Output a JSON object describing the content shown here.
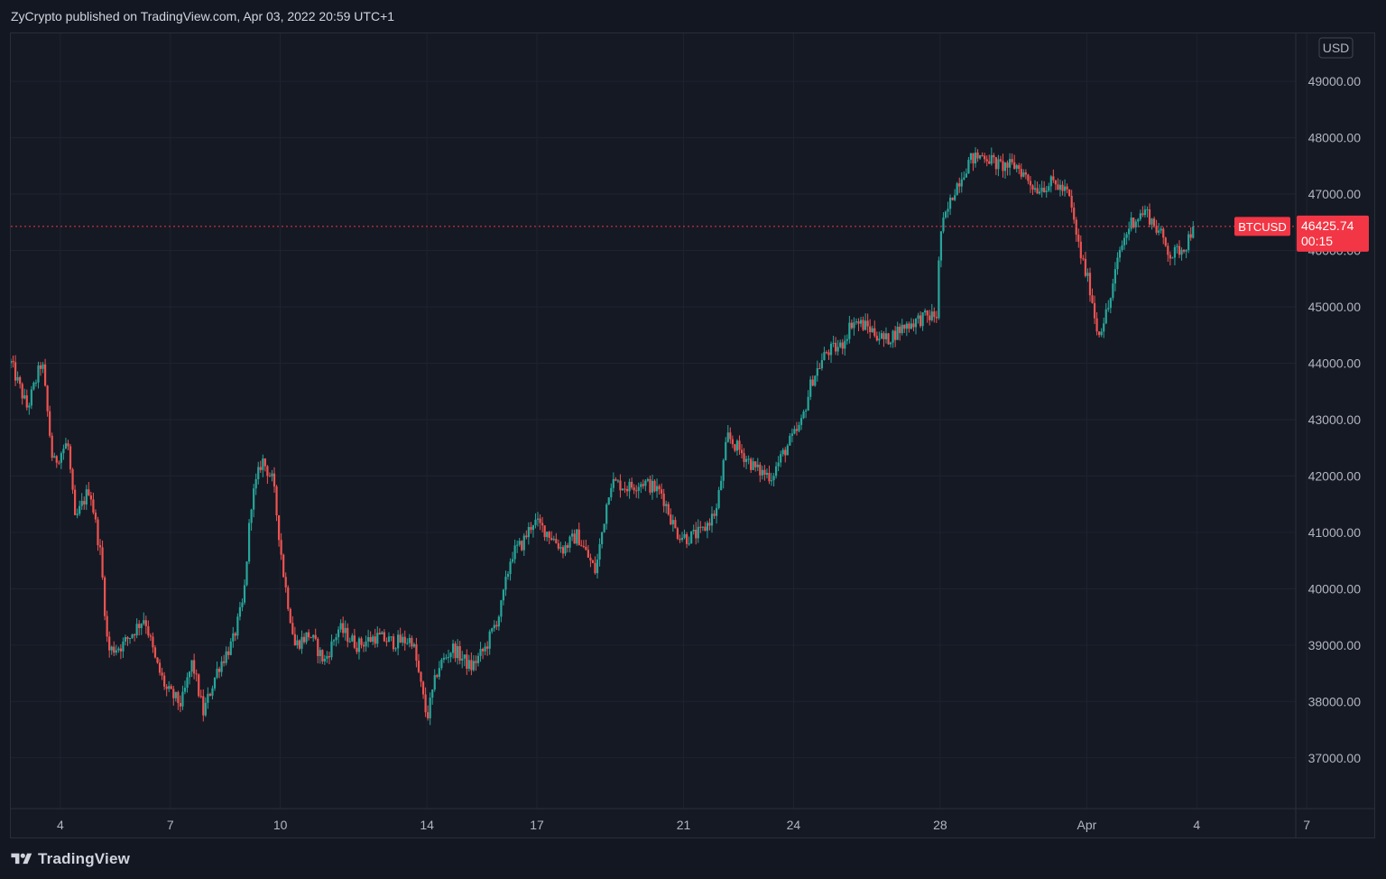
{
  "header": {
    "published_by": "ZyCrypto published on TradingView.com, Apr 03, 2022 20:59 UTC+1"
  },
  "footer": {
    "brand": "TradingView",
    "brand_icon": "tradingview-logo-icon"
  },
  "colors": {
    "background": "#131722",
    "grid": "#1f2330",
    "up": "#26a69a",
    "down": "#ef5350",
    "last_price": "#f23645"
  },
  "chart_data": {
    "type": "candlestick",
    "symbol": "BTCUSD",
    "currency": "USD",
    "last_price": "46425.74",
    "countdown": "00:15",
    "y_ticks": [
      "49000.00",
      "48000.00",
      "47000.00",
      "46000.00",
      "45000.00",
      "44000.00",
      "43000.00",
      "42000.00",
      "41000.00",
      "40000.00",
      "39000.00",
      "38000.00",
      "37000.00"
    ],
    "ylim": [
      36100,
      49850
    ],
    "x_ticks": [
      {
        "label": "4",
        "day": 4
      },
      {
        "label": "7",
        "day": 7
      },
      {
        "label": "10",
        "day": 10
      },
      {
        "label": "14",
        "day": 14
      },
      {
        "label": "17",
        "day": 17
      },
      {
        "label": "21",
        "day": 21
      },
      {
        "label": "24",
        "day": 24
      },
      {
        "label": "28",
        "day": 28
      },
      {
        "label": "Apr",
        "day": 32
      },
      {
        "label": "4",
        "day": 35
      },
      {
        "label": "7",
        "day": 38
      }
    ],
    "xlim": [
      2.65,
      37.7
    ],
    "price_path": [
      [
        2.65,
        44000
      ],
      [
        3.1,
        43200
      ],
      [
        3.5,
        44050
      ],
      [
        3.8,
        42200
      ],
      [
        4.2,
        42600
      ],
      [
        4.4,
        41200
      ],
      [
        4.8,
        41800
      ],
      [
        5.1,
        40600
      ],
      [
        5.3,
        38900
      ],
      [
        5.7,
        39000
      ],
      [
        6.3,
        39500
      ],
      [
        6.6,
        38700
      ],
      [
        6.9,
        38200
      ],
      [
        7.3,
        37950
      ],
      [
        7.6,
        38700
      ],
      [
        7.9,
        37800
      ],
      [
        8.3,
        38600
      ],
      [
        8.7,
        39050
      ],
      [
        9.0,
        39800
      ],
      [
        9.2,
        41500
      ],
      [
        9.5,
        42300
      ],
      [
        9.8,
        41900
      ],
      [
        10.1,
        40200
      ],
      [
        10.4,
        39000
      ],
      [
        10.8,
        39200
      ],
      [
        11.2,
        38700
      ],
      [
        11.6,
        39300
      ],
      [
        12.1,
        39000
      ],
      [
        12.6,
        39150
      ],
      [
        13.1,
        39050
      ],
      [
        13.6,
        39100
      ],
      [
        14.0,
        37700
      ],
      [
        14.3,
        38600
      ],
      [
        14.7,
        38950
      ],
      [
        15.2,
        38600
      ],
      [
        15.6,
        38950
      ],
      [
        16.0,
        39600
      ],
      [
        16.3,
        40600
      ],
      [
        16.6,
        40800
      ],
      [
        16.9,
        41200
      ],
      [
        17.3,
        41000
      ],
      [
        17.7,
        40700
      ],
      [
        18.1,
        40950
      ],
      [
        18.6,
        40300
      ],
      [
        19.0,
        41900
      ],
      [
        19.5,
        41800
      ],
      [
        19.9,
        41900
      ],
      [
        20.4,
        41700
      ],
      [
        20.8,
        41000
      ],
      [
        21.1,
        40900
      ],
      [
        21.5,
        41000
      ],
      [
        21.9,
        41400
      ],
      [
        22.2,
        42700
      ],
      [
        22.6,
        42400
      ],
      [
        23.0,
        42100
      ],
      [
        23.4,
        42000
      ],
      [
        23.8,
        42500
      ],
      [
        24.2,
        42900
      ],
      [
        24.5,
        43700
      ],
      [
        24.9,
        44200
      ],
      [
        25.3,
        44300
      ],
      [
        25.6,
        44750
      ],
      [
        26.0,
        44650
      ],
      [
        26.5,
        44400
      ],
      [
        27.0,
        44650
      ],
      [
        27.5,
        44800
      ],
      [
        27.9,
        44850
      ],
      [
        28.0,
        46300
      ],
      [
        28.4,
        47100
      ],
      [
        28.8,
        47600
      ],
      [
        29.2,
        47700
      ],
      [
        29.6,
        47500
      ],
      [
        30.1,
        47500
      ],
      [
        30.6,
        47100
      ],
      [
        31.1,
        47200
      ],
      [
        31.5,
        47000
      ],
      [
        31.8,
        46000
      ],
      [
        32.1,
        45300
      ],
      [
        32.3,
        44500
      ],
      [
        32.6,
        45000
      ],
      [
        32.9,
        46000
      ],
      [
        33.2,
        46500
      ],
      [
        33.6,
        46700
      ],
      [
        34.0,
        46300
      ],
      [
        34.3,
        45900
      ],
      [
        34.7,
        46100
      ],
      [
        34.9,
        46425
      ]
    ]
  }
}
